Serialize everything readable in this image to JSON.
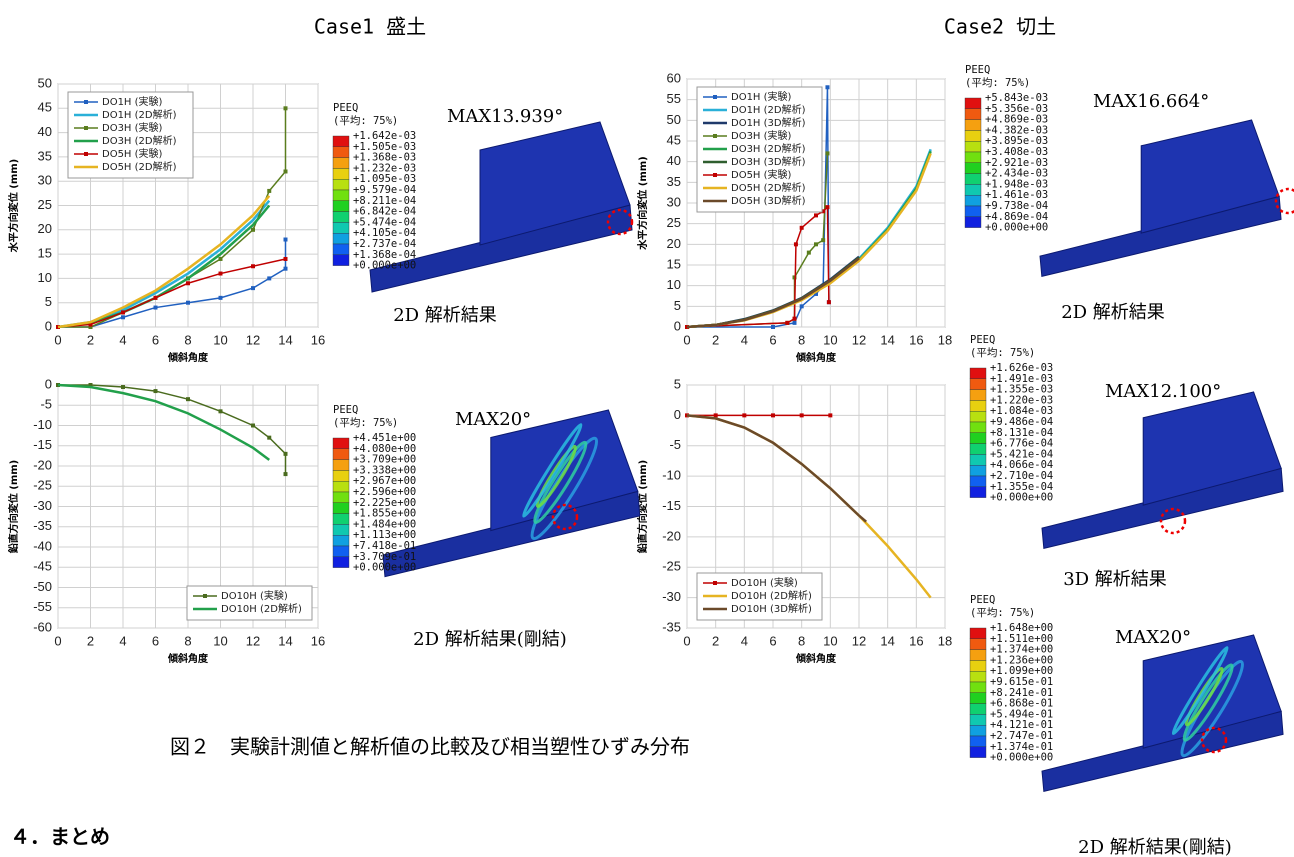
{
  "case1_title": "Case1 盛土",
  "case2_title": "Case2 切土",
  "figure_caption": "図２　実験計測値と解析値の比較及び相当塑性ひずみ分布",
  "section_heading": "４．まとめ",
  "chart_data": [
    {
      "type": "line",
      "xlabel": "傾斜角度",
      "ylabel": "水平方向変位 (mm)",
      "xlim": [
        0,
        16
      ],
      "ylim": [
        0,
        50
      ],
      "xticks": [
        0,
        2,
        4,
        6,
        8,
        10,
        12,
        14,
        16
      ],
      "yticks": [
        0,
        5,
        10,
        15,
        20,
        25,
        30,
        35,
        40,
        45,
        50
      ],
      "grid": true,
      "legend": "upper left",
      "series": [
        {
          "name": "DO1H (実験)",
          "color": "#2060c0",
          "markers": true,
          "x": [
            0,
            2,
            4,
            6,
            8,
            10,
            12,
            13,
            14,
            14
          ],
          "values": [
            0,
            0,
            2,
            4,
            5,
            6,
            8,
            10,
            12,
            18
          ]
        },
        {
          "name": "DO1H (2D解析)",
          "color": "#2ab0d8",
          "x": [
            0,
            2,
            4,
            6,
            8,
            10,
            12,
            13
          ],
          "values": [
            0,
            1,
            3.5,
            7,
            11,
            16,
            22,
            26
          ]
        },
        {
          "name": "DO3H (実験)",
          "color": "#5a7d1e",
          "markers": true,
          "x": [
            0,
            2,
            4,
            6,
            8,
            10,
            12,
            13,
            14,
            14
          ],
          "values": [
            0,
            0,
            3,
            6,
            10,
            14,
            20,
            28,
            32,
            45
          ]
        },
        {
          "name": "DO3H (2D解析)",
          "color": "#22a04b",
          "x": [
            0,
            2,
            4,
            6,
            8,
            10,
            12,
            13
          ],
          "values": [
            0,
            0.8,
            3,
            6,
            10,
            15,
            21,
            25
          ]
        },
        {
          "name": "DO5H (実験)",
          "color": "#c00000",
          "markers": true,
          "x": [
            0,
            2,
            4,
            6,
            8,
            10,
            12,
            14
          ],
          "values": [
            0,
            0.5,
            3,
            6,
            9,
            11,
            12.5,
            14
          ]
        },
        {
          "name": "DO5H (2D解析)",
          "color": "#e6b422",
          "x": [
            0,
            2,
            4,
            6,
            8,
            10,
            12,
            13
          ],
          "values": [
            0,
            1,
            4,
            7.5,
            12,
            17,
            23,
            27
          ]
        }
      ]
    },
    {
      "type": "line",
      "xlabel": "傾斜角度",
      "ylabel": "鉛直方向変位 (mm)",
      "xlim": [
        0,
        16
      ],
      "ylim": [
        -60,
        0
      ],
      "xticks": [
        0,
        2,
        4,
        6,
        8,
        10,
        12,
        14,
        16
      ],
      "yticks": [
        0,
        -5,
        -10,
        -15,
        -20,
        -25,
        -30,
        -35,
        -40,
        -45,
        -50,
        -55,
        -60
      ],
      "grid": true,
      "legend": "lower right",
      "series": [
        {
          "name": "DO10H (実験)",
          "color": "#4a6b1e",
          "markers": true,
          "x": [
            0,
            2,
            4,
            6,
            8,
            10,
            12,
            13,
            14,
            14
          ],
          "values": [
            0,
            0,
            -0.5,
            -1.5,
            -3.5,
            -6.5,
            -10,
            -13,
            -17,
            -22
          ]
        },
        {
          "name": "DO10H (2D解析)",
          "color": "#22a04b",
          "x": [
            0,
            2,
            4,
            6,
            8,
            10,
            12,
            13
          ],
          "values": [
            0,
            -0.5,
            -2,
            -4,
            -7,
            -11,
            -15.5,
            -18.5
          ]
        }
      ]
    },
    {
      "type": "line",
      "xlabel": "傾斜角度",
      "ylabel": "水平方向変位 (mm)",
      "xlim": [
        0,
        18
      ],
      "ylim": [
        0,
        60
      ],
      "xticks": [
        0,
        2,
        4,
        6,
        8,
        10,
        12,
        14,
        16,
        18
      ],
      "yticks": [
        0,
        5,
        10,
        15,
        20,
        25,
        30,
        35,
        40,
        45,
        50,
        55,
        60
      ],
      "grid": true,
      "legend": "upper left",
      "series": [
        {
          "name": "DO1H (実験)",
          "color": "#2060c0",
          "markers": true,
          "x": [
            0,
            6,
            7.5,
            8,
            9,
            9.5,
            9.8,
            9.9
          ],
          "values": [
            0,
            0,
            1,
            5,
            8,
            10,
            58,
            6
          ]
        },
        {
          "name": "DO1H (2D解析)",
          "color": "#2ab0d8",
          "x": [
            0,
            2,
            4,
            6,
            8,
            10,
            12,
            14,
            16,
            17
          ],
          "values": [
            0,
            0.5,
            1.8,
            3.8,
            6.8,
            11,
            16.5,
            24,
            34,
            43
          ]
        },
        {
          "name": "DO1H (3D解析)",
          "color": "#1f3a6b",
          "x": [
            0,
            2,
            4,
            6,
            8,
            10,
            12
          ],
          "values": [
            0,
            0.5,
            1.9,
            4,
            7,
            11.5,
            17
          ]
        },
        {
          "name": "DO3H (実験)",
          "color": "#5a7d1e",
          "markers": true,
          "x": [
            0,
            7,
            7.5,
            7.5,
            8.5,
            9,
            9.5,
            9.8
          ],
          "values": [
            0,
            1,
            2,
            12,
            18,
            20,
            21,
            42
          ]
        },
        {
          "name": "DO3H (2D解析)",
          "color": "#22a04b",
          "x": [
            0,
            2,
            4,
            6,
            8,
            10,
            12,
            14,
            16,
            17
          ],
          "values": [
            0,
            0.5,
            1.7,
            3.7,
            6.6,
            10.8,
            16.2,
            23.6,
            33.5,
            42.5
          ]
        },
        {
          "name": "DO3H (3D解析)",
          "color": "#2e5e2e",
          "x": [
            0,
            2,
            4,
            6,
            8,
            10,
            12
          ],
          "values": [
            0,
            0.5,
            1.8,
            3.9,
            6.9,
            11.3,
            16.8
          ]
        },
        {
          "name": "DO5H (実験)",
          "color": "#c00000",
          "markers": true,
          "x": [
            0,
            7,
            7.5,
            7.6,
            8,
            9,
            9.5,
            9.8,
            9.9
          ],
          "values": [
            0,
            1,
            2,
            20,
            24,
            27,
            28,
            29,
            6
          ]
        },
        {
          "name": "DO5H (2D解析)",
          "color": "#e6b422",
          "x": [
            0,
            2,
            4,
            6,
            8,
            10,
            12,
            14,
            16,
            17
          ],
          "values": [
            0,
            0.5,
            1.6,
            3.6,
            6.5,
            10.6,
            16,
            23.3,
            33,
            42
          ]
        },
        {
          "name": "DO5H (3D解析)",
          "color": "#6b4a2a",
          "x": [
            0,
            2,
            4,
            6,
            8,
            10,
            12
          ],
          "values": [
            0,
            0.5,
            1.7,
            3.8,
            6.8,
            11.2,
            16.6
          ]
        }
      ]
    },
    {
      "type": "line",
      "xlabel": "傾斜角度",
      "ylabel": "鉛直方向変位 (mm)",
      "xlim": [
        0,
        18
      ],
      "ylim": [
        -35,
        5
      ],
      "xticks": [
        0,
        2,
        4,
        6,
        8,
        10,
        12,
        14,
        16,
        18
      ],
      "yticks": [
        5,
        0,
        -5,
        -10,
        -15,
        -20,
        -25,
        -30,
        -35
      ],
      "grid": true,
      "legend": "lower left",
      "series": [
        {
          "name": "DO10H (実験)",
          "color": "#c00000",
          "markers": true,
          "x": [
            0,
            2,
            4,
            6,
            8,
            10
          ],
          "values": [
            0,
            0,
            0,
            0,
            0,
            0
          ]
        },
        {
          "name": "DO10H (2D解析)",
          "color": "#e6b422",
          "x": [
            0,
            2,
            4,
            6,
            8,
            10,
            12,
            14,
            16,
            17
          ],
          "values": [
            0,
            -0.5,
            -2,
            -4.5,
            -8,
            -12,
            -16.5,
            -21.5,
            -27,
            -30
          ]
        },
        {
          "name": "DO10H (3D解析)",
          "color": "#6b4a2a",
          "x": [
            0,
            2,
            4,
            6,
            8,
            10,
            12,
            12.5
          ],
          "values": [
            0,
            -0.5,
            -2,
            -4.5,
            -8,
            -12,
            -16.5,
            -17.5
          ]
        }
      ]
    }
  ],
  "band_colors": [
    "#e01010",
    "#f05a10",
    "#f5a010",
    "#e8d010",
    "#b8e010",
    "#70e010",
    "#20d020",
    "#10d070",
    "#10c8b0",
    "#10a0e0",
    "#1060f0",
    "#1020e0"
  ],
  "contours": [
    {
      "header": "PEEQ",
      "subheader": "(平均: 75%)",
      "max": "MAX13.939°",
      "caption": "2D 解析結果",
      "labels": [
        "+1.642e-03",
        "+1.505e-03",
        "+1.368e-03",
        "+1.232e-03",
        "+1.095e-03",
        "+9.579e-04",
        "+8.211e-04",
        "+6.842e-04",
        "+5.474e-04",
        "+4.105e-04",
        "+2.737e-04",
        "+1.368e-04",
        "+0.000e+00"
      ]
    },
    {
      "header": "PEEQ",
      "subheader": "(平均: 75%)",
      "max": "MAX20°",
      "caption": "2D 解析結果(剛結)",
      "labels": [
        "+4.451e+00",
        "+4.080e+00",
        "+3.709e+00",
        "+3.338e+00",
        "+2.967e+00",
        "+2.596e+00",
        "+2.225e+00",
        "+1.855e+00",
        "+1.484e+00",
        "+1.113e+00",
        "+7.418e-01",
        "+3.709e-01",
        "+0.000e+00"
      ]
    },
    {
      "header": "PEEQ",
      "subheader": "(平均: 75%)",
      "max": "MAX16.664°",
      "caption": "2D 解析結果",
      "labels": [
        "+5.843e-03",
        "+5.356e-03",
        "+4.869e-03",
        "+4.382e-03",
        "+3.895e-03",
        "+3.408e-03",
        "+2.921e-03",
        "+2.434e-03",
        "+1.948e-03",
        "+1.461e-03",
        "+9.738e-04",
        "+4.869e-04",
        "+0.000e+00"
      ]
    },
    {
      "header": "PEEQ",
      "subheader": "(平均: 75%)",
      "max": "MAX12.100°",
      "caption": "3D 解析結果",
      "labels": [
        "+1.626e-03",
        "+1.491e-03",
        "+1.355e-03",
        "+1.220e-03",
        "+1.084e-03",
        "+9.486e-04",
        "+8.131e-04",
        "+6.776e-04",
        "+5.421e-04",
        "+4.066e-04",
        "+2.710e-04",
        "+1.355e-04",
        "+0.000e+00"
      ]
    },
    {
      "header": "PEEQ",
      "subheader": "(平均: 75%)",
      "max": "MAX20°",
      "caption": "2D 解析結果(剛結)",
      "labels": [
        "+1.648e+00",
        "+1.511e+00",
        "+1.374e+00",
        "+1.236e+00",
        "+1.099e+00",
        "+9.615e-01",
        "+8.241e-01",
        "+6.868e-01",
        "+5.494e-01",
        "+4.121e-01",
        "+2.747e-01",
        "+1.374e-01",
        "+0.000e+00"
      ]
    }
  ]
}
